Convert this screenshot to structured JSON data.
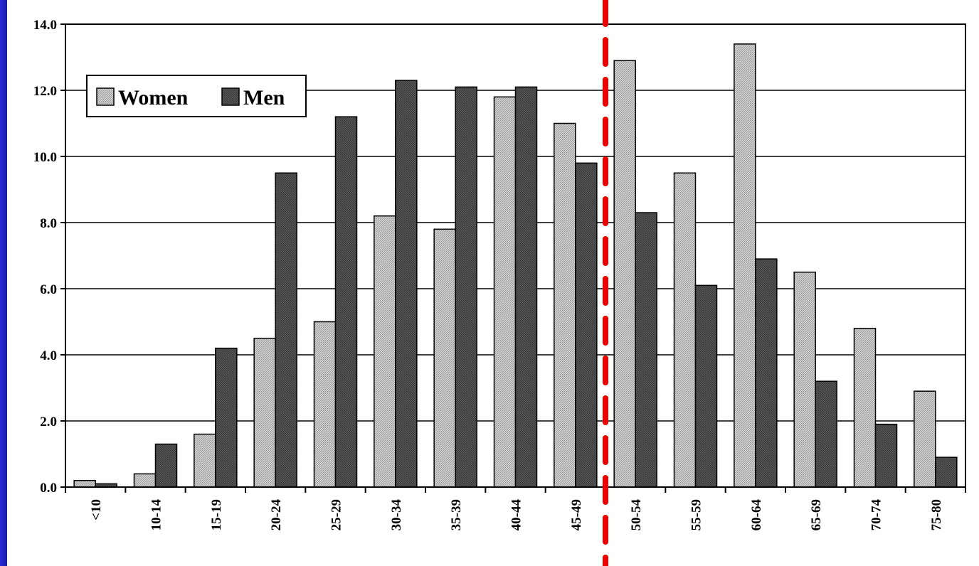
{
  "chart_data": {
    "type": "bar",
    "categories": [
      "<10",
      "10-14",
      "15-19",
      "20-24",
      "25-29",
      "30-34",
      "35-39",
      "40-44",
      "45-49",
      "50-54",
      "55-59",
      "60-64",
      "65-69",
      "70-74",
      "75-80"
    ],
    "series": [
      {
        "name": "Women",
        "values": [
          0.2,
          0.4,
          1.6,
          4.5,
          5.0,
          8.2,
          7.8,
          11.8,
          11.0,
          12.9,
          9.5,
          13.4,
          6.5,
          4.8,
          2.9
        ],
        "color": "#c8c8c8"
      },
      {
        "name": "Men",
        "values": [
          0.1,
          1.3,
          4.2,
          9.5,
          11.2,
          12.3,
          12.1,
          12.1,
          9.8,
          8.3,
          6.1,
          6.9,
          3.2,
          1.9,
          0.9
        ],
        "color": "#4a4a4a"
      }
    ],
    "ylim": [
      0,
      14
    ],
    "yticks": [
      "0.0",
      "2.0",
      "4.0",
      "6.0",
      "8.0",
      "10.0",
      "12.0",
      "14.0"
    ],
    "grid": true,
    "legend_position": "top-left",
    "reference_line": {
      "between": [
        "45-49",
        "50-54"
      ],
      "style": "dashed",
      "color": "#ee0000"
    },
    "xlabel": "",
    "ylabel": "",
    "title": ""
  }
}
